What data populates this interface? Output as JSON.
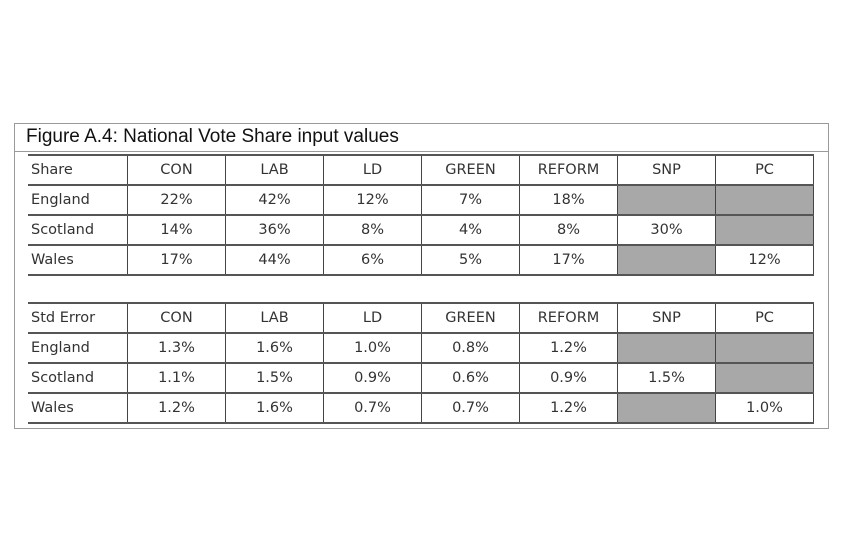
{
  "title": "Figure A.4:  National Vote Share input values",
  "colors": {
    "na_cell": "#a8a8a8"
  },
  "share_table": {
    "headers": [
      "Share",
      "CON",
      "LAB",
      "LD",
      "GREEN",
      "REFORM",
      "SNP",
      "PC"
    ],
    "rows": [
      [
        "England",
        "22%",
        "42%",
        "12%",
        "7%",
        "18%",
        null,
        null
      ],
      [
        "Scotland",
        "14%",
        "36%",
        "8%",
        "4%",
        "8%",
        "30%",
        null
      ],
      [
        "Wales",
        "17%",
        "44%",
        "6%",
        "5%",
        "17%",
        null,
        "12%"
      ]
    ]
  },
  "stderr_table": {
    "headers": [
      "Std Error",
      "CON",
      "LAB",
      "LD",
      "GREEN",
      "REFORM",
      "SNP",
      "PC"
    ],
    "rows": [
      [
        "England",
        "1.3%",
        "1.6%",
        "1.0%",
        "0.8%",
        "1.2%",
        null,
        null
      ],
      [
        "Scotland",
        "1.1%",
        "1.5%",
        "0.9%",
        "0.6%",
        "0.9%",
        "1.5%",
        null
      ],
      [
        "Wales",
        "1.2%",
        "1.6%",
        "0.7%",
        "0.7%",
        "1.2%",
        null,
        "1.0%"
      ]
    ]
  }
}
